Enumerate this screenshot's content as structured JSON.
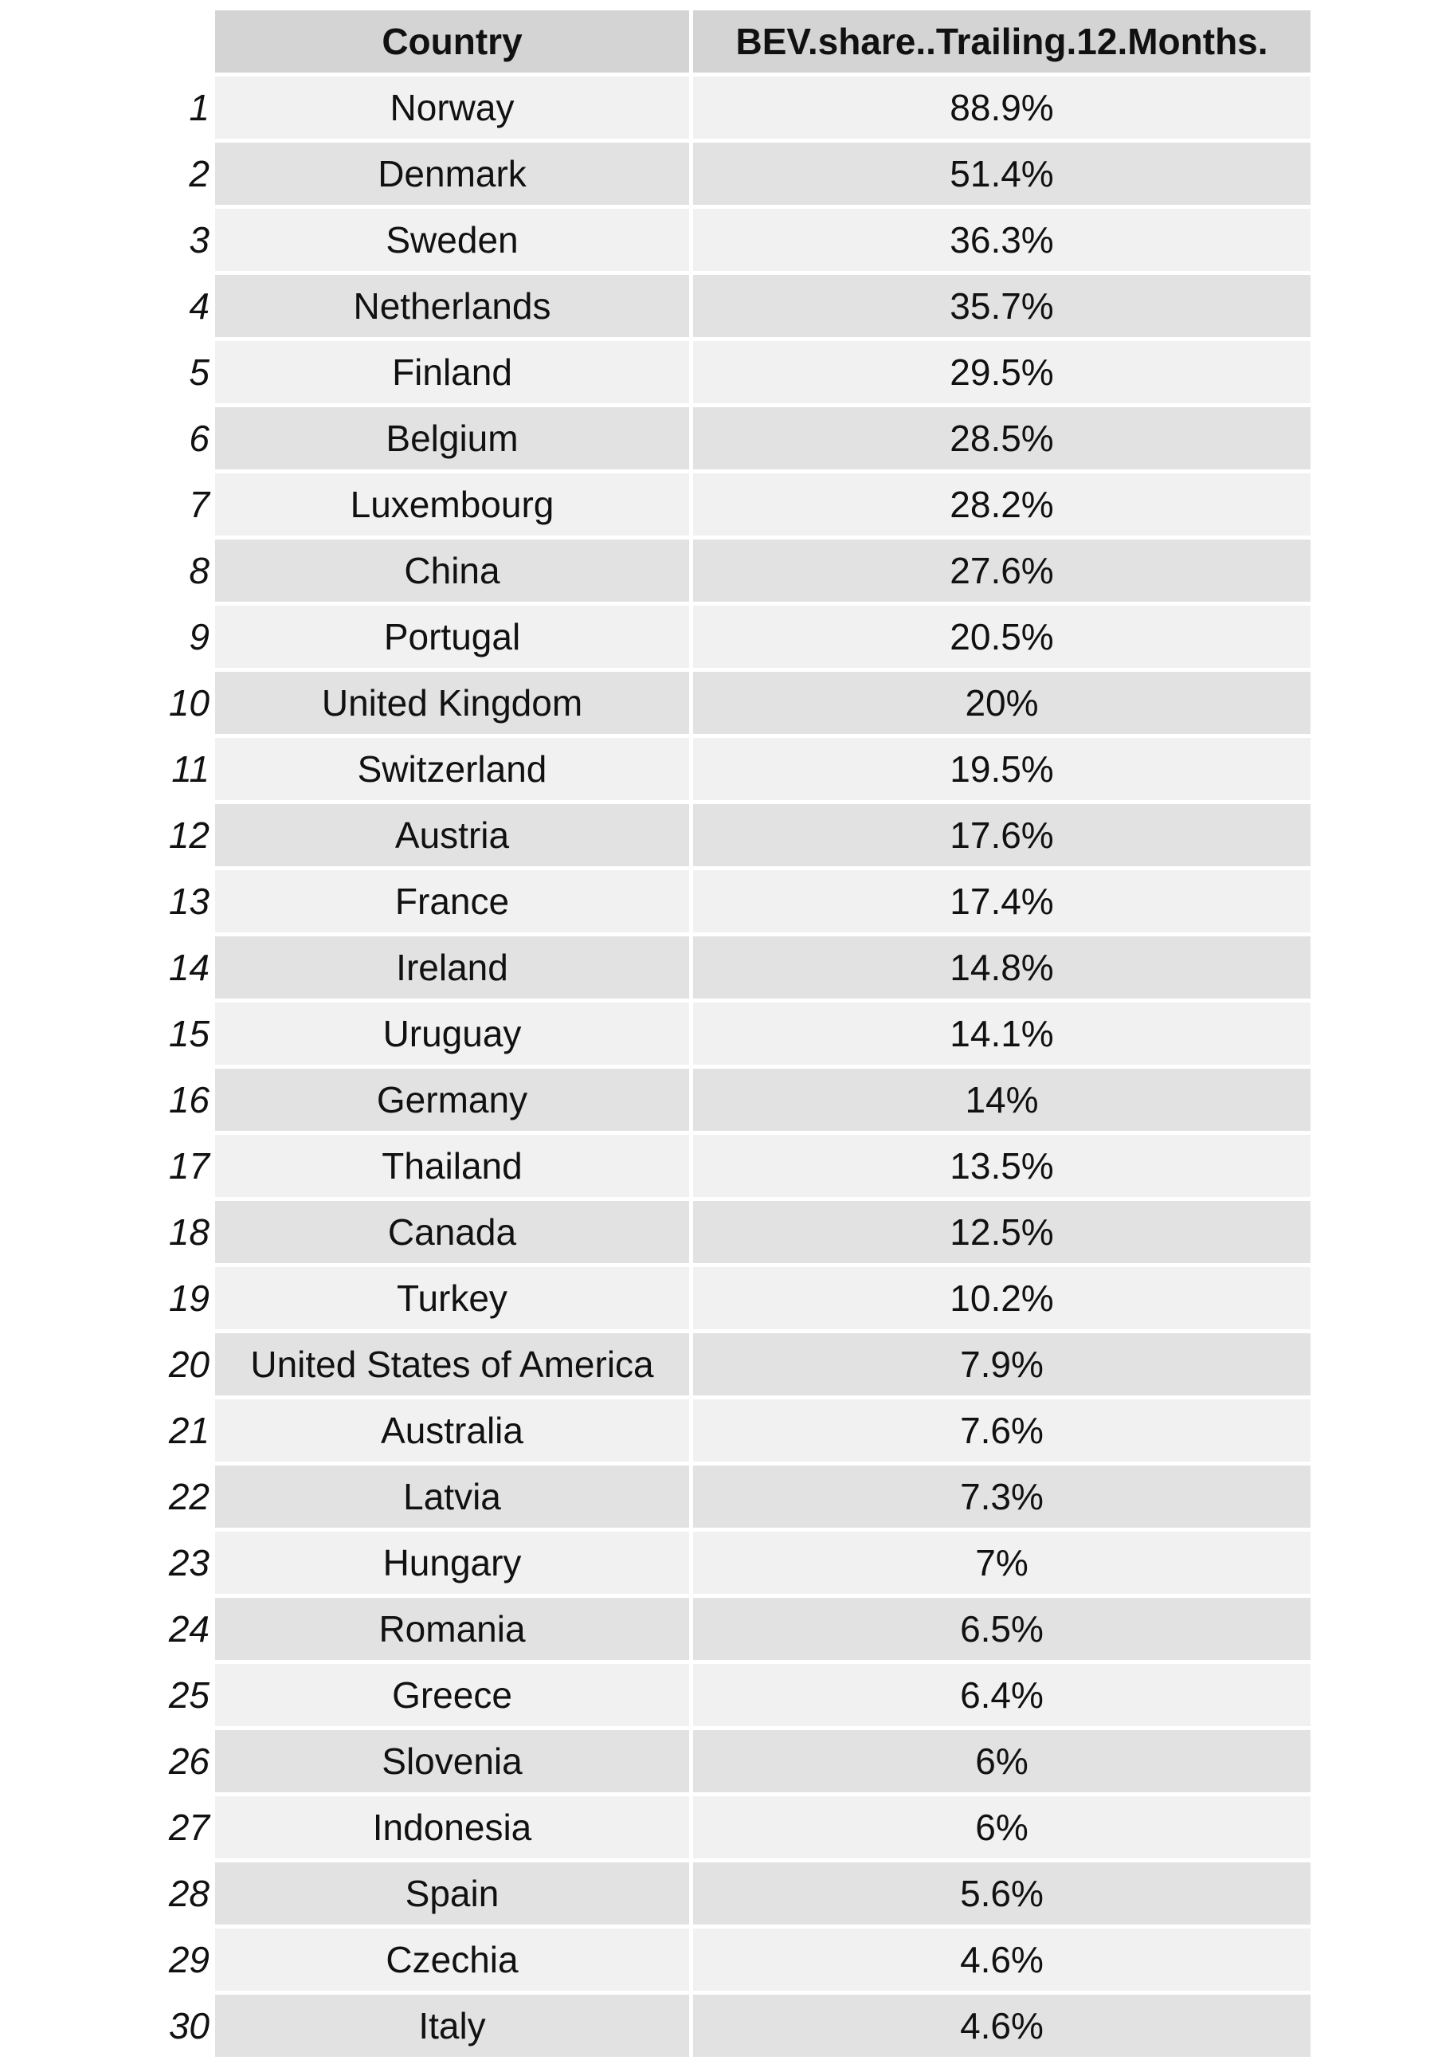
{
  "chart_data": {
    "type": "table",
    "columns": [
      "",
      "Country",
      "BEV.share..Trailing.12.Months."
    ],
    "rows": [
      {
        "rank": "1",
        "country": "Norway",
        "value": "88.9%"
      },
      {
        "rank": "2",
        "country": "Denmark",
        "value": "51.4%"
      },
      {
        "rank": "3",
        "country": "Sweden",
        "value": "36.3%"
      },
      {
        "rank": "4",
        "country": "Netherlands",
        "value": "35.7%"
      },
      {
        "rank": "5",
        "country": "Finland",
        "value": "29.5%"
      },
      {
        "rank": "6",
        "country": "Belgium",
        "value": "28.5%"
      },
      {
        "rank": "7",
        "country": "Luxembourg",
        "value": "28.2%"
      },
      {
        "rank": "8",
        "country": "China",
        "value": "27.6%"
      },
      {
        "rank": "9",
        "country": "Portugal",
        "value": "20.5%"
      },
      {
        "rank": "10",
        "country": "United Kingdom",
        "value": "20%"
      },
      {
        "rank": "11",
        "country": "Switzerland",
        "value": "19.5%"
      },
      {
        "rank": "12",
        "country": "Austria",
        "value": "17.6%"
      },
      {
        "rank": "13",
        "country": "France",
        "value": "17.4%"
      },
      {
        "rank": "14",
        "country": "Ireland",
        "value": "14.8%"
      },
      {
        "rank": "15",
        "country": "Uruguay",
        "value": "14.1%"
      },
      {
        "rank": "16",
        "country": "Germany",
        "value": "14%"
      },
      {
        "rank": "17",
        "country": "Thailand",
        "value": "13.5%"
      },
      {
        "rank": "18",
        "country": "Canada",
        "value": "12.5%"
      },
      {
        "rank": "19",
        "country": "Turkey",
        "value": "10.2%"
      },
      {
        "rank": "20",
        "country": "United States of America",
        "value": "7.9%"
      },
      {
        "rank": "21",
        "country": "Australia",
        "value": "7.6%"
      },
      {
        "rank": "22",
        "country": "Latvia",
        "value": "7.3%"
      },
      {
        "rank": "23",
        "country": "Hungary",
        "value": "7%"
      },
      {
        "rank": "24",
        "country": "Romania",
        "value": "6.5%"
      },
      {
        "rank": "25",
        "country": "Greece",
        "value": "6.4%"
      },
      {
        "rank": "26",
        "country": "Slovenia",
        "value": "6%"
      },
      {
        "rank": "27",
        "country": "Indonesia",
        "value": "6%"
      },
      {
        "rank": "28",
        "country": "Spain",
        "value": "5.6%"
      },
      {
        "rank": "29",
        "country": "Czechia",
        "value": "4.6%"
      },
      {
        "rank": "30",
        "country": "Italy",
        "value": "4.6%"
      }
    ]
  },
  "colors": {
    "header_bg": "#d4d4d4",
    "row_odd_bg": "#f1f1f1",
    "row_even_bg": "#e2e2e2",
    "text": "#111111"
  }
}
